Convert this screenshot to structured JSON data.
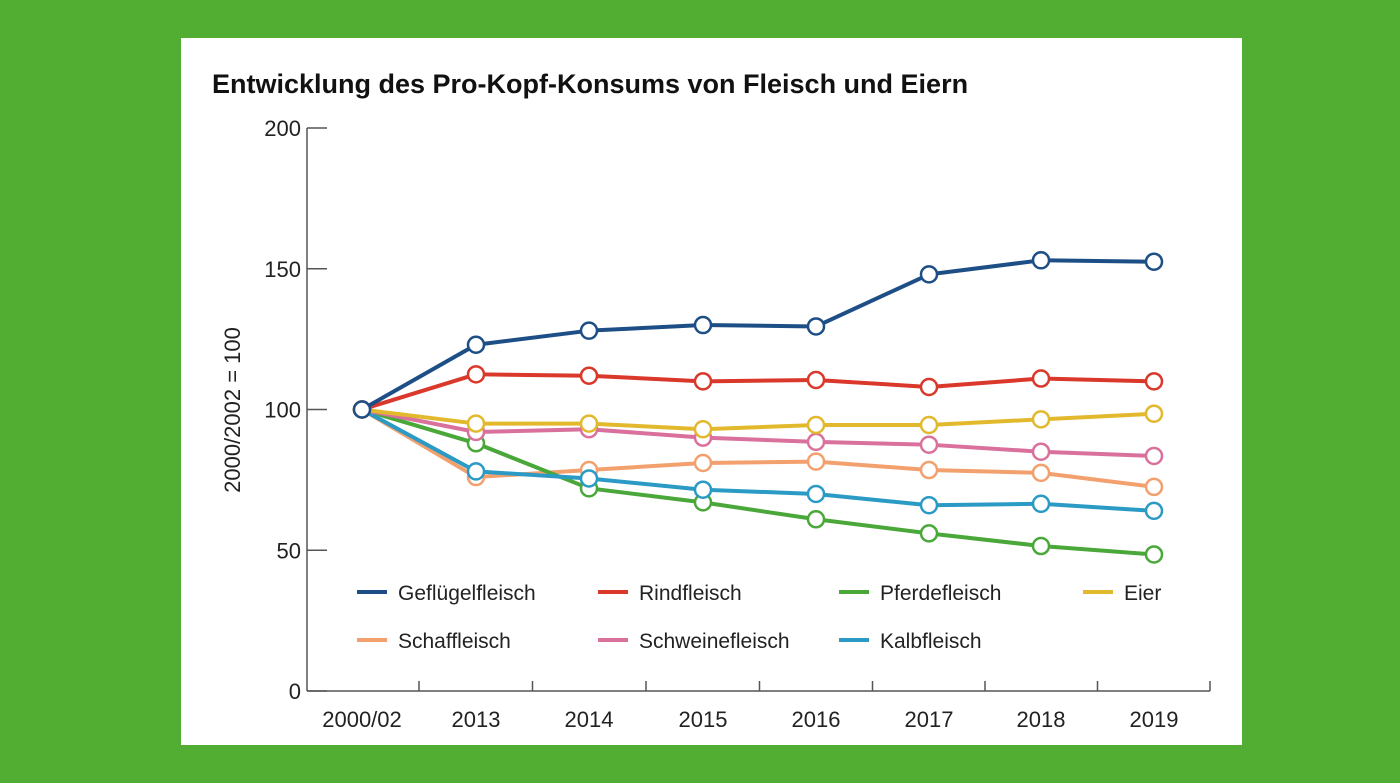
{
  "chart_data": {
    "type": "line",
    "title": "Entwicklung des Pro-Kopf-Konsums von Fleisch und Eiern",
    "xlabel": "",
    "ylabel": "2000/2002 = 100",
    "ylim": [
      0,
      200
    ],
    "yticks": [
      "0",
      "50",
      "100",
      "150",
      "200"
    ],
    "categories": [
      "2000/02",
      "2013",
      "2014",
      "2015",
      "2016",
      "2017",
      "2018",
      "2019"
    ],
    "grid": false,
    "legend_position": "bottom-inside",
    "series": [
      {
        "name": "Geflügelfleisch",
        "color": "#1d4f86",
        "values": [
          100,
          123,
          128,
          130,
          129.5,
          148,
          153,
          152.5
        ]
      },
      {
        "name": "Rindfleisch",
        "color": "#d9382b",
        "values": [
          100,
          112.5,
          112,
          110,
          110.5,
          108,
          111,
          110
        ]
      },
      {
        "name": "Pferdefleisch",
        "color": "#4aa83a",
        "values": [
          100,
          88,
          72,
          67,
          61,
          56,
          51.5,
          48.5
        ]
      },
      {
        "name": "Eier",
        "color": "#e2b92d",
        "values": [
          100,
          95,
          95,
          93,
          94.5,
          94.5,
          96.5,
          98.5
        ]
      },
      {
        "name": "Schaffleisch",
        "color": "#f2a06e",
        "values": [
          100,
          76,
          78.5,
          81,
          81.5,
          78.5,
          77.5,
          72.5
        ]
      },
      {
        "name": "Schweinefleisch",
        "color": "#d9719c",
        "values": [
          100,
          92,
          93,
          90,
          88.5,
          87.5,
          85,
          83.5
        ]
      },
      {
        "name": "Kalbfleisch",
        "color": "#2b9ac4",
        "values": [
          100,
          78,
          75.5,
          71.5,
          70,
          66,
          66.5,
          64
        ]
      }
    ]
  }
}
